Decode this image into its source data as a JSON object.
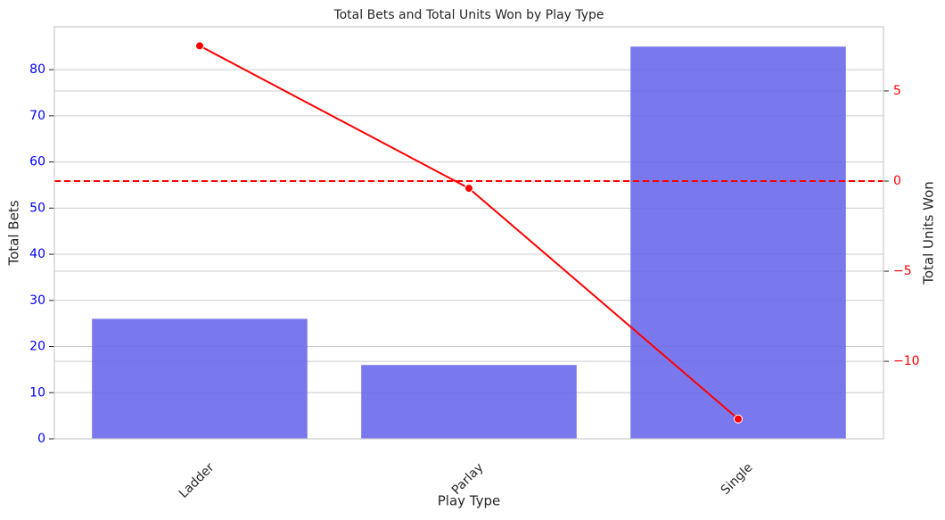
{
  "chart_data": {
    "type": "bar_line",
    "title": "Total Bets and Total Units Won by Play Type",
    "x_label": "Play Type",
    "y_label": "Total Bets",
    "y2_label": "Total Units Won",
    "categories": [
      "Ladder",
      "Parlay",
      "Single"
    ],
    "series": [
      {
        "type": "bar",
        "color": "#6a6aeb",
        "values": [
          26,
          16,
          85
        ]
      },
      {
        "type": "line",
        "axis": "y2",
        "color": "#ff0000",
        "values": [
          7.5,
          -0.4,
          -13.2
        ]
      }
    ],
    "ylim": [
      0,
      89.3
    ],
    "yticks": [
      0,
      10,
      20,
      30,
      40,
      50,
      60,
      70,
      80
    ],
    "y2lim": [
      -14.3,
      8.56
    ],
    "y2ticks": [
      {
        "value": -10,
        "label": "−10"
      },
      {
        "value": -5,
        "label": "−5"
      },
      0,
      5
    ],
    "y_color": "#0000ff",
    "y2_color": "#ff0000",
    "reference_lines": [
      {
        "axis": "y2",
        "value": 0,
        "color": "#ff0000",
        "style": "dashed"
      }
    ],
    "grid": true
  }
}
